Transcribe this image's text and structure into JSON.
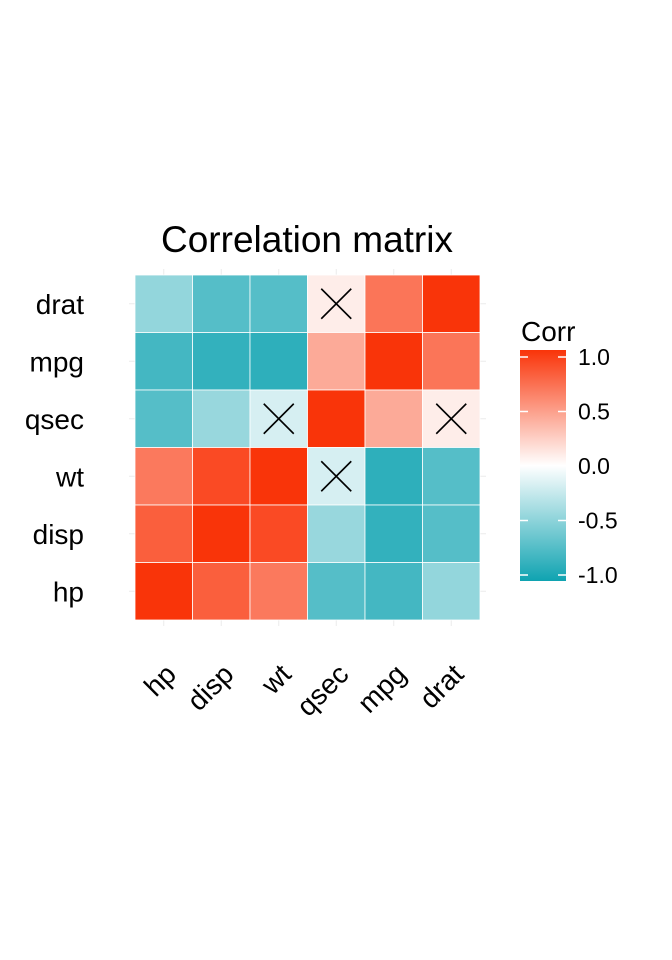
{
  "colors": {
    "low": "#0fa3b1",
    "mid": "#ffffff",
    "high": "#f93409",
    "grid": "#ebebeb"
  },
  "chart_data": {
    "type": "heatmap",
    "title": "Correlation matrix",
    "x_categories": [
      "hp",
      "disp",
      "wt",
      "qsec",
      "mpg",
      "drat"
    ],
    "y_categories": [
      "hp",
      "disp",
      "wt",
      "qsec",
      "mpg",
      "drat"
    ],
    "y_order_top_to_bottom": [
      "drat",
      "mpg",
      "qsec",
      "wt",
      "disp",
      "hp"
    ],
    "values": [
      [
        1.0,
        0.79,
        0.66,
        -0.71,
        -0.78,
        -0.45
      ],
      [
        0.79,
        1.0,
        0.89,
        -0.43,
        -0.85,
        -0.71
      ],
      [
        0.66,
        0.89,
        1.0,
        -0.17,
        -0.87,
        -0.71
      ],
      [
        -0.71,
        -0.43,
        -0.17,
        1.0,
        0.42,
        0.09
      ],
      [
        -0.78,
        -0.85,
        -0.87,
        0.42,
        1.0,
        0.68
      ],
      [
        -0.45,
        -0.71,
        -0.71,
        0.09,
        0.68,
        1.0
      ]
    ],
    "crossed": [
      [
        "qsec",
        "drat"
      ],
      [
        "wt",
        "qsec"
      ],
      [
        "drat",
        "qsec"
      ],
      [
        "qsec",
        "wt"
      ]
    ],
    "legend": {
      "title": "Corr",
      "ticks": [
        "1.0",
        "0.5",
        "0.0",
        "-0.5",
        "-1.0"
      ],
      "tick_values": [
        1.0,
        0.5,
        0.0,
        -0.5,
        -1.0
      ],
      "range": [
        -1,
        1
      ],
      "placement": "right"
    }
  }
}
